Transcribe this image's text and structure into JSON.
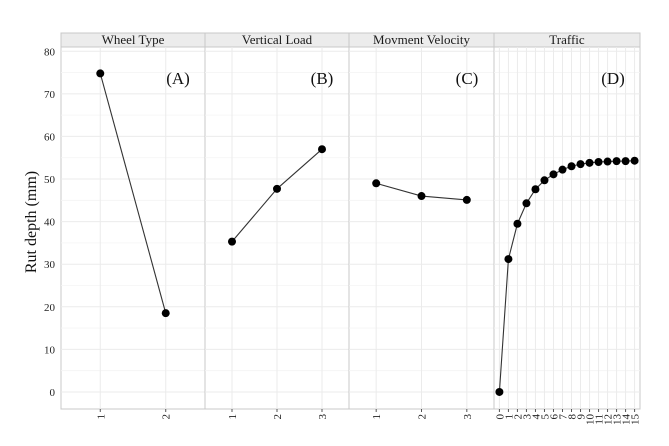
{
  "chart_data": {
    "type": "line",
    "ylabel": "Rut depth (mm)",
    "ylim": [
      -4,
      81
    ],
    "yticks": [
      0,
      10,
      20,
      30,
      40,
      50,
      60,
      70,
      80
    ],
    "grid": true,
    "panels": [
      {
        "strip": "Wheel Type",
        "tag": "(A)",
        "categories": [
          "1",
          "2"
        ],
        "values": [
          74.8,
          18.5
        ]
      },
      {
        "strip": "Vertical Load",
        "tag": "(B)",
        "categories": [
          "1",
          "2",
          "3"
        ],
        "values": [
          35.3,
          47.7,
          57.0
        ]
      },
      {
        "strip": "Movment Velocity",
        "tag": "(C)",
        "categories": [
          "1",
          "2",
          "3"
        ],
        "values": [
          49.0,
          46.0,
          45.1
        ]
      },
      {
        "strip": "Traffic",
        "tag": "(D)",
        "categories": [
          "0",
          "1",
          "2",
          "3",
          "4",
          "5",
          "6",
          "7",
          "8",
          "9",
          "10",
          "11",
          "12",
          "13",
          "14",
          "15"
        ],
        "values": [
          0,
          31.2,
          39.5,
          44.3,
          47.6,
          49.7,
          51.1,
          52.2,
          53.0,
          53.5,
          53.8,
          54.0,
          54.1,
          54.2,
          54.2,
          54.3
        ]
      }
    ]
  }
}
